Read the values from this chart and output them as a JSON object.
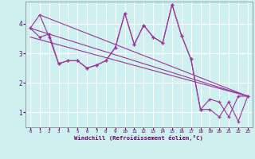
{
  "xlabel": "Windchill (Refroidissement éolien,°C)",
  "bg_color": "#cff0f0",
  "line_color": "#993399",
  "grid_color": "#ffffff",
  "figsize": [
    3.2,
    2.0
  ],
  "dpi": 100,
  "xlim": [
    -0.5,
    23.5
  ],
  "ylim": [
    0.5,
    4.75
  ],
  "yticks": [
    1,
    2,
    3,
    4
  ],
  "xticks": [
    0,
    1,
    2,
    3,
    4,
    5,
    6,
    7,
    8,
    9,
    10,
    11,
    12,
    13,
    14,
    15,
    16,
    17,
    18,
    19,
    20,
    21,
    22,
    23
  ],
  "series1_x": [
    0,
    1,
    2,
    3,
    4,
    5,
    6,
    7,
    8,
    9,
    10,
    11,
    12,
    13,
    14,
    15,
    16,
    17,
    18,
    19,
    20,
    21,
    22,
    23
  ],
  "series1_y": [
    3.85,
    4.3,
    3.55,
    2.65,
    2.75,
    2.75,
    2.5,
    2.6,
    2.75,
    3.2,
    4.35,
    3.3,
    3.95,
    3.55,
    3.35,
    4.65,
    3.6,
    2.8,
    1.1,
    1.1,
    0.85,
    1.35,
    0.7,
    1.55
  ],
  "series2_x": [
    0,
    1,
    2,
    3,
    4,
    5,
    6,
    7,
    8,
    9,
    10,
    11,
    12,
    13,
    14,
    15,
    16,
    17,
    18,
    19,
    20,
    21,
    22,
    23
  ],
  "series2_y": [
    3.85,
    3.55,
    3.65,
    2.65,
    2.75,
    2.75,
    2.5,
    2.6,
    2.75,
    3.2,
    4.35,
    3.3,
    3.95,
    3.55,
    3.35,
    4.65,
    3.6,
    2.8,
    1.1,
    1.45,
    1.35,
    0.85,
    1.55,
    1.55
  ],
  "trend_lines": [
    {
      "x": [
        0,
        23
      ],
      "y": [
        3.85,
        1.55
      ]
    },
    {
      "x": [
        0,
        23
      ],
      "y": [
        3.55,
        1.55
      ]
    },
    {
      "x": [
        1,
        23
      ],
      "y": [
        4.3,
        1.55
      ]
    }
  ],
  "tick_label_color": "#660066",
  "xlabel_color": "#660066",
  "spine_color": "#999999"
}
